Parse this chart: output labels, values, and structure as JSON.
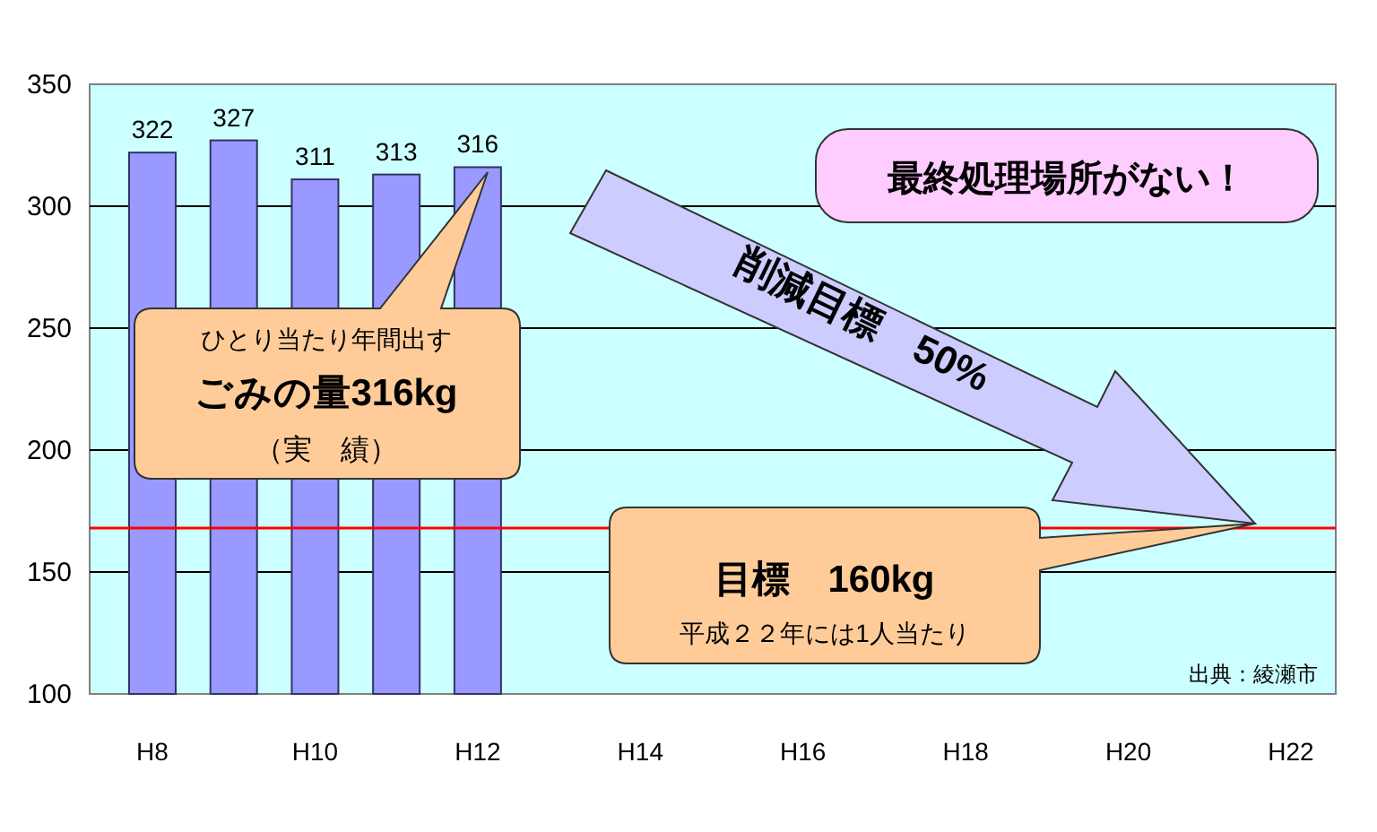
{
  "chart_data": {
    "type": "bar",
    "categories": [
      "H8",
      null,
      "H10",
      null,
      "H12",
      null,
      "H14",
      null,
      "H16",
      null,
      "H18",
      null,
      "H20",
      null,
      "H22"
    ],
    "values": [
      322,
      327,
      311,
      313,
      316,
      null,
      null,
      null,
      null,
      null,
      null,
      null,
      null,
      null,
      null
    ],
    "color": "#9999ff",
    "ylim": [
      100,
      350
    ],
    "yticks": [
      100,
      150,
      200,
      250,
      300,
      350
    ],
    "grid": "y",
    "data_labels": true,
    "ref_lines": [
      {
        "axis": "y",
        "value": 168,
        "color": "#ff0000"
      }
    ],
    "annotations": [
      "ひとり当たり年間出す",
      "ごみの量316kg",
      "（実　績）",
      "最終処理場所がない！",
      "削減目標　50%",
      "目標　160kg",
      "平成２２年には1人当たり",
      "出典：綾瀬市"
    ]
  }
}
